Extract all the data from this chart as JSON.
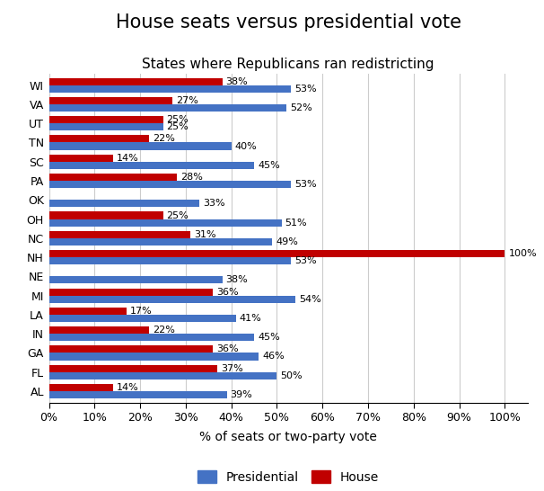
{
  "title": "House seats versus presidential vote",
  "subtitle": "States where Republicans ran redistricting",
  "xlabel": "% of seats or two-party vote",
  "states": [
    "WI",
    "VA",
    "UT",
    "TN",
    "SC",
    "PA",
    "OK",
    "OH",
    "NC",
    "NH",
    "NE",
    "MI",
    "LA",
    "IN",
    "GA",
    "FL",
    "AL"
  ],
  "presidential": [
    53,
    52,
    25,
    40,
    45,
    53,
    33,
    51,
    49,
    53,
    38,
    54,
    41,
    45,
    46,
    50,
    39
  ],
  "house": [
    38,
    27,
    25,
    22,
    14,
    28,
    0,
    25,
    31,
    100,
    0,
    36,
    17,
    22,
    36,
    37,
    14
  ],
  "presidential_color": "#4472C4",
  "house_color": "#C00000",
  "bar_height": 0.38,
  "xlim": [
    0,
    105
  ],
  "xticks": [
    0,
    10,
    20,
    30,
    40,
    50,
    60,
    70,
    80,
    90,
    100
  ],
  "xticklabels": [
    "0%",
    "10%",
    "20%",
    "30%",
    "40%",
    "50%",
    "60%",
    "70%",
    "80%",
    "90%",
    "100%"
  ],
  "title_fontsize": 15,
  "subtitle_fontsize": 11,
  "label_fontsize": 8,
  "tick_fontsize": 9,
  "legend_fontsize": 10
}
